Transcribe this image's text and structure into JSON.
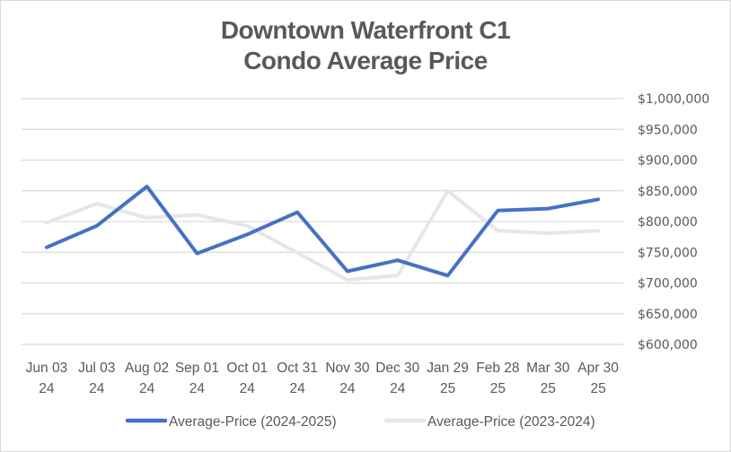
{
  "chart_data": {
    "type": "line",
    "title": "Downtown Waterfront C1 Condo Average Price",
    "title_lines": [
      "Downtown Waterfront C1",
      "Condo Average Price"
    ],
    "xlabel": "",
    "ylabel": "",
    "categories": [
      [
        "Jun 03",
        "24"
      ],
      [
        "Jul 03",
        "24"
      ],
      [
        "Aug 02",
        "24"
      ],
      [
        "Sep 01",
        "24"
      ],
      [
        "Oct 01",
        "24"
      ],
      [
        "Oct 31",
        "24"
      ],
      [
        "Nov 30",
        "24"
      ],
      [
        "Dec 30",
        "24"
      ],
      [
        "Jan 29",
        "25"
      ],
      [
        "Feb 28",
        "25"
      ],
      [
        "Mar 30",
        "25"
      ],
      [
        "Apr 30",
        "25"
      ]
    ],
    "ylim": [
      600000,
      1000000
    ],
    "yticks": [
      600000,
      650000,
      700000,
      750000,
      800000,
      850000,
      900000,
      950000,
      1000000
    ],
    "ytick_labels": [
      "$600,000",
      "$650,000",
      "$700,000",
      "$750,000",
      "$800,000",
      "$850,000",
      "$900,000",
      "$950,000",
      "$1,000,000"
    ],
    "y_axis_side": "right",
    "grid": true,
    "legend_position": "bottom",
    "series": [
      {
        "name": "Average-Price (2024-2025)",
        "color": "#4472c4",
        "values": [
          758000,
          793000,
          857000,
          748000,
          779000,
          815000,
          719000,
          737000,
          712000,
          818000,
          821000,
          836000
        ]
      },
      {
        "name": "Average-Price (2023-2024)",
        "color": "#e7e6e6",
        "values": [
          798000,
          829000,
          806000,
          811000,
          793000,
          749000,
          705000,
          712000,
          850000,
          785000,
          781000,
          785000
        ]
      }
    ]
  }
}
